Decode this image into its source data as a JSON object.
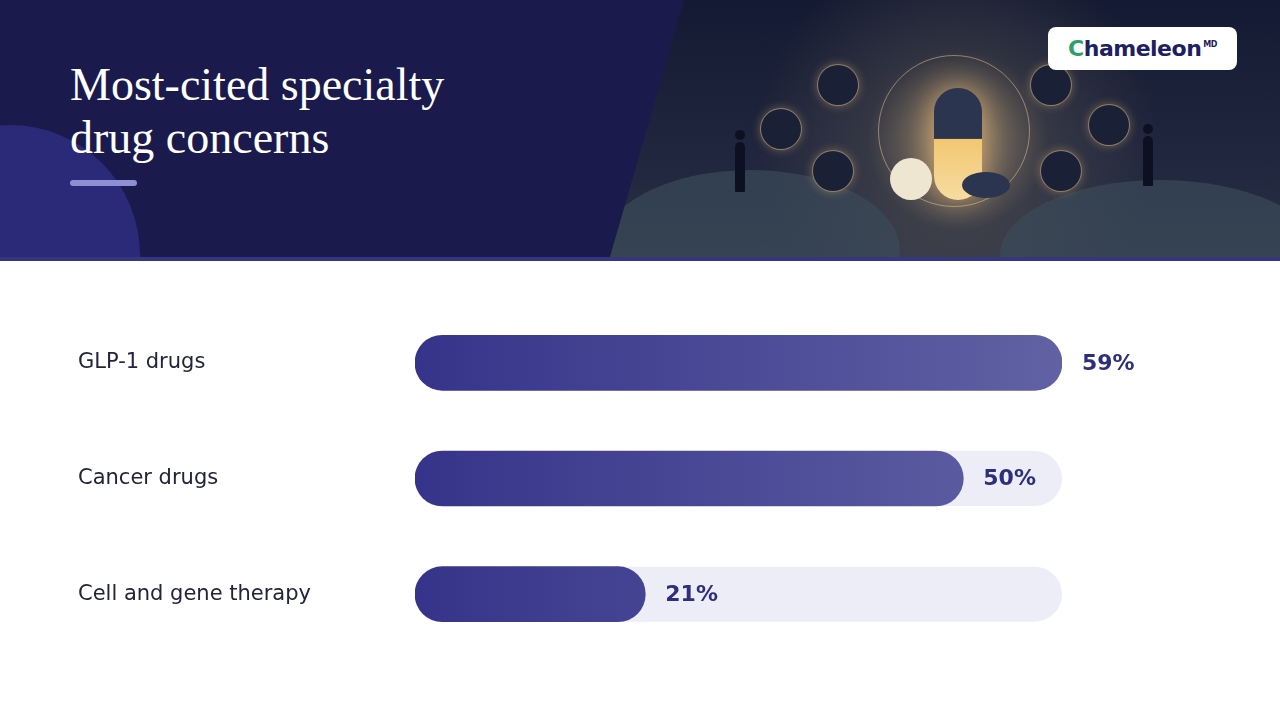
{
  "chart_data": {
    "type": "bar",
    "orientation": "horizontal",
    "title": "Most-cited specialty drug concerns",
    "categories": [
      "GLP-1 drugs",
      "Cancer drugs",
      "Cell and gene therapy"
    ],
    "values": [
      59,
      50,
      21
    ],
    "value_labels": [
      "59%",
      "50%",
      "21%"
    ],
    "data_labels": true,
    "color": "#35348a",
    "xlim": [
      0,
      59
    ],
    "tick_labels": "y",
    "grid": false
  },
  "logo": {
    "text": "Chameleon",
    "superscript": "MD"
  }
}
